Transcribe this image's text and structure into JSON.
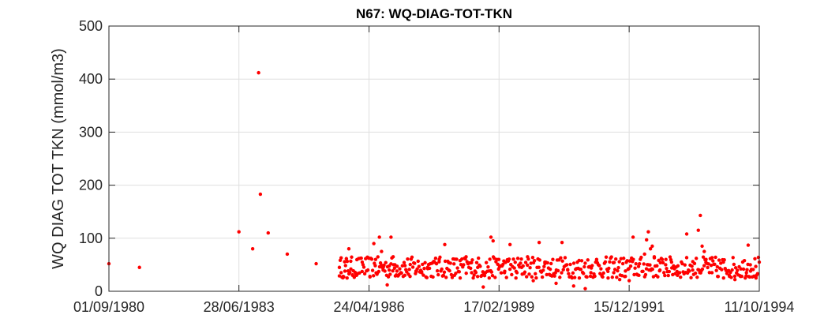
{
  "chart_data": {
    "type": "scatter",
    "title": "N67: WQ-DIAG-TOT-TKN",
    "xlabel": "",
    "ylabel": "WQ DIAG TOT TKN (mmol/m3)",
    "xlim": [
      "01/09/1980",
      "11/10/1994"
    ],
    "ylim": [
      0,
      500
    ],
    "x_ticks": [
      "01/09/1980",
      "28/06/1983",
      "24/04/1986",
      "17/02/1989",
      "15/12/1991",
      "11/10/1994"
    ],
    "y_ticks": [
      0,
      100,
      200,
      300,
      400,
      500
    ],
    "grid": true,
    "marker_color": "#ff0000",
    "points": [
      [
        "01/09/1980",
        52
      ],
      [
        "01/05/1981",
        45
      ],
      [
        "28/06/1983",
        112
      ],
      [
        "15/10/1983",
        80
      ],
      [
        "01/12/1983",
        412
      ],
      [
        "15/12/1983",
        183
      ],
      [
        "15/02/1984",
        110
      ],
      [
        "15/07/1984",
        70
      ],
      [
        "01/03/1985",
        52
      ],
      [
        "01/09/1985",
        45
      ],
      [
        "15/09/1985",
        35
      ],
      [
        "01/10/1985",
        28
      ],
      [
        "15/10/1985",
        38
      ],
      [
        "01/11/1985",
        25
      ],
      [
        "15/11/1985",
        80
      ],
      [
        "01/12/1985",
        42
      ],
      [
        "15/12/1985",
        30
      ],
      [
        "15/01/1986",
        30
      ],
      [
        "01/03/1986",
        55
      ],
      [
        "15/04/1986",
        40
      ],
      [
        "01/05/1986",
        28
      ],
      [
        "01/06/1986",
        90
      ],
      [
        "15/06/1986",
        60
      ],
      [
        "01/07/1986",
        35
      ],
      [
        "15/07/1986",
        102
      ],
      [
        "01/08/1986",
        75
      ],
      [
        "15/08/1986",
        45
      ],
      [
        "15/09/1986",
        12
      ],
      [
        "01/10/1986",
        40
      ],
      [
        "15/10/1986",
        102
      ],
      [
        "01/11/1986",
        65
      ],
      [
        "15/11/1986",
        50
      ],
      [
        "01/12/1986",
        38
      ],
      [
        "01/01/1987",
        35
      ],
      [
        "01/02/1987",
        30
      ],
      [
        "15/03/1987",
        28
      ],
      [
        "01/05/1987",
        38
      ],
      [
        "15/06/1987",
        35
      ],
      [
        "01/08/1987",
        45
      ],
      [
        "15/09/1987",
        55
      ],
      [
        "01/11/1987",
        60
      ],
      [
        "15/12/1987",
        88
      ],
      [
        "15/01/1988",
        40
      ],
      [
        "01/03/1988",
        30
      ],
      [
        "15/04/1988",
        25
      ],
      [
        "01/06/1988",
        65
      ],
      [
        "15/07/1988",
        35
      ],
      [
        "01/09/1988",
        45
      ],
      [
        "15/10/1988",
        8
      ],
      [
        "01/12/1988",
        25
      ],
      [
        "15/12/1988",
        102
      ],
      [
        "01/01/1989",
        95
      ],
      [
        "15/02/1989",
        60
      ],
      [
        "01/04/1989",
        35
      ],
      [
        "15/05/1989",
        88
      ],
      [
        "01/07/1989",
        25
      ],
      [
        "15/08/1989",
        45
      ],
      [
        "01/10/1989",
        65
      ],
      [
        "15/11/1989",
        20
      ],
      [
        "01/01/1990",
        92
      ],
      [
        "15/02/1990",
        55
      ],
      [
        "01/04/1990",
        30
      ],
      [
        "15/05/1990",
        15
      ],
      [
        "01/07/1990",
        92
      ],
      [
        "15/08/1990",
        40
      ],
      [
        "01/10/1990",
        10
      ],
      [
        "15/11/1990",
        25
      ],
      [
        "01/01/1991",
        5
      ],
      [
        "15/02/1991",
        35
      ],
      [
        "01/04/1991",
        60
      ],
      [
        "15/05/1991",
        28
      ],
      [
        "01/07/1991",
        25
      ],
      [
        "15/08/1991",
        35
      ],
      [
        "01/10/1991",
        22
      ],
      [
        "15/11/1991",
        28
      ],
      [
        "15/12/1991",
        20
      ],
      [
        "15/01/1992",
        102
      ],
      [
        "01/03/1992",
        30
      ],
      [
        "15/04/1992",
        70
      ],
      [
        "01/05/1992",
        97
      ],
      [
        "15/05/1992",
        112
      ],
      [
        "01/06/1992",
        80
      ],
      [
        "15/06/1992",
        85
      ],
      [
        "01/07/1992",
        65
      ],
      [
        "15/08/1992",
        40
      ],
      [
        "01/10/1992",
        60
      ],
      [
        "15/11/1992",
        55
      ],
      [
        "01/01/1993",
        30
      ],
      [
        "15/03/1993",
        108
      ],
      [
        "01/05/1993",
        40
      ],
      [
        "15/06/1993",
        115
      ],
      [
        "01/07/1993",
        143
      ],
      [
        "15/07/1993",
        85
      ],
      [
        "01/08/1993",
        75
      ],
      [
        "15/08/1993",
        60
      ],
      [
        "01/10/1993",
        35
      ],
      [
        "15/11/1993",
        28
      ],
      [
        "01/01/1994",
        25
      ],
      [
        "15/02/1994",
        30
      ],
      [
        "01/04/1994",
        22
      ],
      [
        "15/05/1994",
        28
      ],
      [
        "01/07/1994",
        35
      ],
      [
        "15/07/1994",
        87
      ],
      [
        "01/08/1994",
        50
      ],
      [
        "15/09/1994",
        25
      ],
      [
        "11/10/1994",
        55
      ]
    ]
  }
}
